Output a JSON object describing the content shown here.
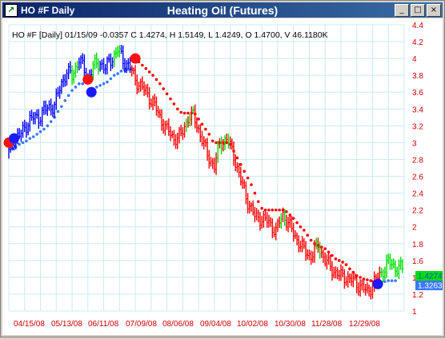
{
  "window": {
    "symbol_title": "HO #F Daily",
    "chart_title": "Heating Oil (Futures)",
    "buttons": {
      "minimize": "_",
      "maximize": "□",
      "close": "×"
    }
  },
  "info_line": "HO #F [Daily] 01/15/09  -0.0357 C 1.4274, H 1.5149, L 1.4249, O 1.4700, V 46.1180K",
  "price_labels": {
    "close": "1.4274",
    "stop": "1.3263"
  },
  "colors": {
    "up": "#00dd00",
    "down": "#ff0000",
    "neutral": "#0000ff",
    "grid": "#c8ecf4",
    "axis_text": "#cc0000",
    "stop_sell": "#ff0000",
    "stop_buy": "#3b78ff"
  },
  "chart_data": {
    "type": "line",
    "ylim": [
      1,
      4.4
    ],
    "yticks": [
      1,
      1.2,
      1.4,
      1.6,
      1.8,
      2,
      2.2,
      2.4,
      2.6,
      2.8,
      3,
      3.2,
      3.4,
      3.6,
      3.8,
      4,
      4.2,
      4.4
    ],
    "xticks": [
      "04/15/08",
      "05/13/08",
      "06/11/08",
      "07/09/08",
      "08/06/08",
      "09/04/08",
      "10/02/08",
      "10/30/08",
      "11/28/08",
      "12/29/08"
    ],
    "price_path": [
      [
        0,
        2.88
      ],
      [
        3,
        3.05
      ],
      [
        7,
        3.1
      ],
      [
        12,
        3.28
      ],
      [
        17,
        3.3
      ],
      [
        20,
        3.38
      ],
      [
        26,
        3.45
      ],
      [
        30,
        3.7
      ],
      [
        33,
        3.85
      ],
      [
        36,
        3.78
      ],
      [
        40,
        4.0
      ],
      [
        43,
        3.85
      ],
      [
        45,
        3.78
      ],
      [
        48,
        3.9
      ],
      [
        52,
        3.95
      ],
      [
        55,
        3.88
      ],
      [
        58,
        3.98
      ],
      [
        62,
        4.1
      ],
      [
        65,
        3.98
      ],
      [
        68,
        3.92
      ],
      [
        72,
        3.75
      ],
      [
        78,
        3.6
      ],
      [
        82,
        3.48
      ],
      [
        86,
        3.3
      ],
      [
        90,
        3.15
      ],
      [
        94,
        3.05
      ],
      [
        98,
        3.08
      ],
      [
        102,
        3.3
      ],
      [
        105,
        3.32
      ],
      [
        109,
        3.1
      ],
      [
        113,
        2.85
      ],
      [
        117,
        2.72
      ],
      [
        120,
        2.98
      ],
      [
        124,
        3.05
      ],
      [
        128,
        2.85
      ],
      [
        132,
        2.55
      ],
      [
        136,
        2.3
      ],
      [
        140,
        2.12
      ],
      [
        144,
        2.1
      ],
      [
        148,
        2.05
      ],
      [
        152,
        1.95
      ],
      [
        156,
        2.15
      ],
      [
        160,
        2.0
      ],
      [
        164,
        1.85
      ],
      [
        168,
        1.72
      ],
      [
        172,
        1.65
      ],
      [
        176,
        1.78
      ],
      [
        180,
        1.6
      ],
      [
        184,
        1.5
      ],
      [
        188,
        1.42
      ],
      [
        192,
        1.4
      ],
      [
        196,
        1.35
      ],
      [
        200,
        1.3
      ],
      [
        204,
        1.22
      ],
      [
        208,
        1.35
      ],
      [
        212,
        1.45
      ],
      [
        216,
        1.58
      ],
      [
        220,
        1.52
      ],
      [
        224,
        1.5
      ]
    ],
    "sar_sell": [
      [
        0,
        2.98
      ],
      [
        1,
        3.0
      ],
      [
        45,
        3.75
      ],
      [
        46,
        3.77
      ],
      [
        47,
        3.78
      ],
      [
        72,
        4.0
      ],
      [
        73,
        3.99
      ],
      [
        74,
        3.96
      ],
      [
        76,
        3.92
      ],
      [
        78,
        3.88
      ],
      [
        80,
        3.84
      ],
      [
        82,
        3.8
      ],
      [
        84,
        3.75
      ],
      [
        86,
        3.7
      ],
      [
        88,
        3.64
      ],
      [
        90,
        3.58
      ],
      [
        92,
        3.52
      ],
      [
        94,
        3.46
      ],
      [
        96,
        3.4
      ],
      [
        98,
        3.36
      ],
      [
        100,
        3.35
      ],
      [
        102,
        3.35
      ],
      [
        104,
        3.35
      ],
      [
        106,
        3.34
      ],
      [
        108,
        3.28
      ],
      [
        110,
        3.22
      ],
      [
        112,
        3.16
      ],
      [
        114,
        3.1
      ],
      [
        116,
        3.02
      ],
      [
        118,
        3.0
      ],
      [
        120,
        3.0
      ],
      [
        122,
        3.0
      ],
      [
        124,
        3.0
      ],
      [
        126,
        2.98
      ],
      [
        128,
        2.9
      ],
      [
        130,
        2.82
      ],
      [
        132,
        2.74
      ],
      [
        134,
        2.66
      ],
      [
        136,
        2.58
      ],
      [
        138,
        2.5
      ],
      [
        140,
        2.4
      ],
      [
        142,
        2.3
      ],
      [
        144,
        2.22
      ],
      [
        146,
        2.2
      ],
      [
        148,
        2.2
      ],
      [
        150,
        2.2
      ],
      [
        152,
        2.2
      ],
      [
        154,
        2.2
      ],
      [
        156,
        2.2
      ],
      [
        158,
        2.18
      ],
      [
        160,
        2.14
      ],
      [
        162,
        2.1
      ],
      [
        164,
        2.05
      ],
      [
        166,
        2.0
      ],
      [
        168,
        1.96
      ],
      [
        170,
        1.9
      ],
      [
        172,
        1.84
      ],
      [
        174,
        1.8
      ],
      [
        176,
        1.78
      ],
      [
        178,
        1.76
      ],
      [
        180,
        1.74
      ],
      [
        182,
        1.7
      ],
      [
        184,
        1.66
      ],
      [
        186,
        1.62
      ],
      [
        188,
        1.6
      ],
      [
        190,
        1.58
      ],
      [
        192,
        1.55
      ],
      [
        194,
        1.5
      ],
      [
        196,
        1.46
      ],
      [
        198,
        1.42
      ],
      [
        200,
        1.4
      ],
      [
        202,
        1.38
      ],
      [
        204,
        1.37
      ],
      [
        206,
        1.36
      ],
      [
        208,
        1.35
      ]
    ],
    "sar_buy": [
      [
        2,
        2.93
      ],
      [
        4,
        2.95
      ],
      [
        6,
        2.98
      ],
      [
        8,
        3.0
      ],
      [
        10,
        3.02
      ],
      [
        12,
        3.05
      ],
      [
        14,
        3.07
      ],
      [
        16,
        3.1
      ],
      [
        18,
        3.13
      ],
      [
        20,
        3.16
      ],
      [
        22,
        3.2
      ],
      [
        24,
        3.25
      ],
      [
        26,
        3.3
      ],
      [
        28,
        3.37
      ],
      [
        30,
        3.43
      ],
      [
        32,
        3.5
      ],
      [
        34,
        3.56
      ],
      [
        36,
        3.62
      ],
      [
        38,
        3.66
      ],
      [
        40,
        3.7
      ],
      [
        42,
        3.7
      ],
      [
        48,
        3.64
      ],
      [
        50,
        3.66
      ],
      [
        52,
        3.68
      ],
      [
        54,
        3.7
      ],
      [
        56,
        3.72
      ],
      [
        58,
        3.76
      ],
      [
        60,
        3.8
      ],
      [
        62,
        3.82
      ],
      [
        64,
        3.85
      ],
      [
        66,
        3.86
      ],
      [
        68,
        3.87
      ],
      [
        70,
        3.88
      ],
      [
        210,
        1.32
      ],
      [
        212,
        1.34
      ],
      [
        214,
        1.35
      ],
      [
        216,
        1.36
      ],
      [
        218,
        1.36
      ],
      [
        220,
        1.36
      ]
    ],
    "signals": [
      [
        0,
        3.0,
        "sell"
      ],
      [
        3,
        3.05,
        "buy"
      ],
      [
        45,
        3.75,
        "sell"
      ],
      [
        47,
        3.6,
        "buy"
      ],
      [
        72,
        4.0,
        "sell"
      ],
      [
        210,
        1.32,
        "buy"
      ]
    ]
  }
}
